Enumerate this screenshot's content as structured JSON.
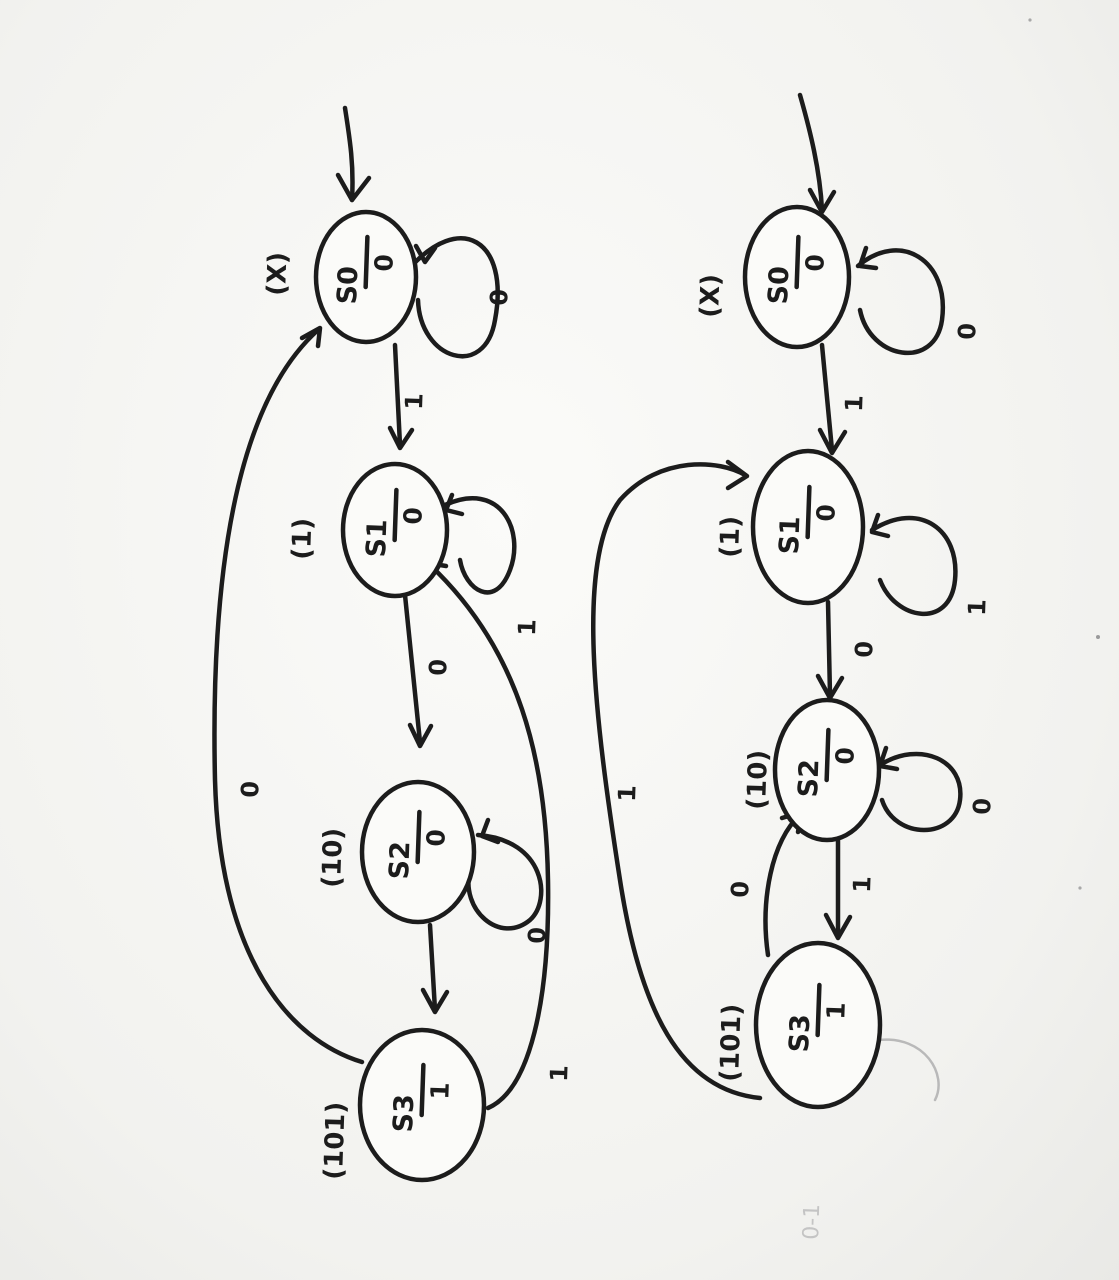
{
  "diagram_left": {
    "states": [
      {
        "name": "S0",
        "output": "0",
        "seq": "(X)"
      },
      {
        "name": "S1",
        "output": "0",
        "seq": "(1)"
      },
      {
        "name": "S2",
        "output": "0",
        "seq": "(10)"
      },
      {
        "name": "S3",
        "output": "1",
        "seq": "(101)"
      }
    ],
    "transitions": {
      "s0_self": "0",
      "s0_s1": "1",
      "s1_self": "1",
      "s1_s2": "0",
      "s2_self": "0",
      "s3_s1": "1",
      "s3_s0": "0"
    }
  },
  "diagram_right": {
    "states": [
      {
        "name": "S0",
        "output": "0",
        "seq": "(X)"
      },
      {
        "name": "S1",
        "output": "0",
        "seq": "(1)"
      },
      {
        "name": "S2",
        "output": "0",
        "seq": "(10)"
      },
      {
        "name": "S3",
        "output": "1",
        "seq": "(101)"
      }
    ],
    "transitions": {
      "s0_self": "0",
      "s0_s1": "1",
      "s1_self": "1",
      "s1_s2": "0",
      "s2_self": "0",
      "s2_s3": "1",
      "s3_s2": "0",
      "s3_s1": "1"
    }
  },
  "margin_mark": "0-1"
}
